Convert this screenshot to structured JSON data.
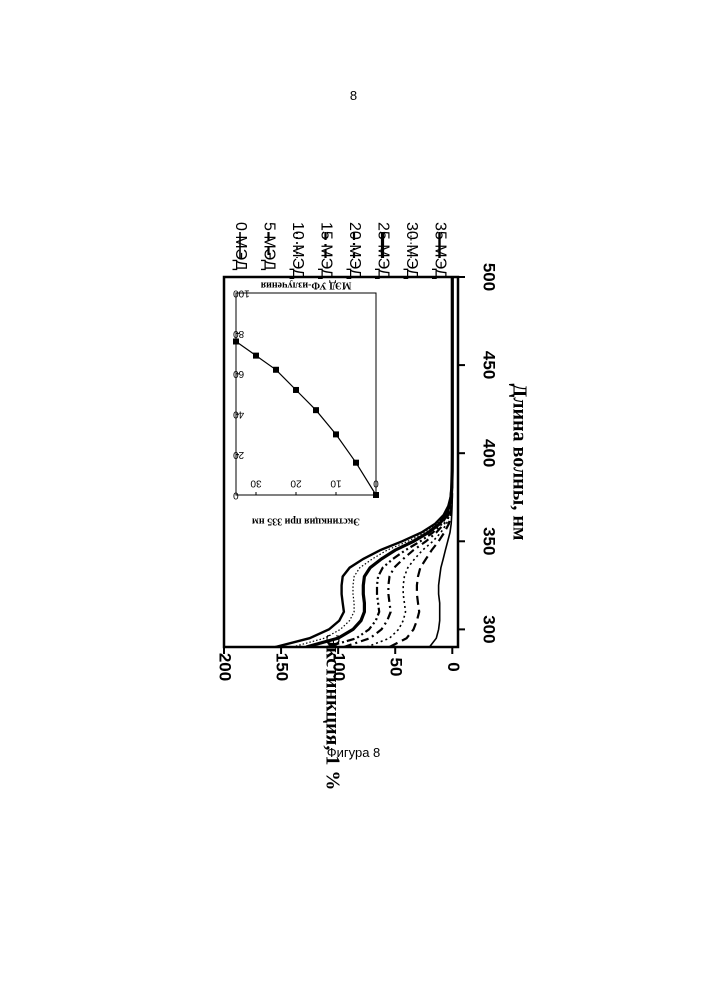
{
  "page": {
    "number": "8",
    "caption": "Фигура 8"
  },
  "chart_data": [
    {
      "type": "line",
      "orientation": "rotated 90° clockwise",
      "xlabel": "Длина волны, нм",
      "ylabel": "Экстинкция, 1 %",
      "xlim": [
        290,
        500
      ],
      "ylim": [
        -5,
        200
      ],
      "xticks": [
        300,
        350,
        400,
        450,
        500
      ],
      "yticks": [
        0,
        50,
        100,
        150,
        200
      ],
      "x": [
        290,
        295,
        300,
        305,
        310,
        315,
        320,
        325,
        330,
        335,
        340,
        345,
        350,
        355,
        360,
        365,
        370,
        375,
        380,
        390,
        400,
        420,
        450,
        500
      ],
      "series": [
        {
          "name": "0 МЭД",
          "style": "solid-thin",
          "values": [
            20,
            14,
            12,
            11,
            11,
            11,
            12,
            12,
            11,
            10,
            8,
            6,
            4,
            2,
            1,
            0.5,
            0.2,
            0,
            0,
            0,
            0,
            0,
            0,
            0
          ]
        },
        {
          "name": "5 МЭД",
          "style": "dashed",
          "values": [
            55,
            40,
            34,
            31,
            29,
            30,
            31,
            31,
            30,
            28,
            23,
            18,
            12,
            7,
            3,
            1.5,
            0.7,
            0.3,
            0.1,
            0,
            0,
            0,
            0,
            0
          ]
        },
        {
          "name": "10 МЭД",
          "style": "dotted",
          "values": [
            75,
            55,
            47,
            43,
            41,
            42,
            43,
            43,
            42,
            39,
            33,
            26,
            17,
            10,
            5,
            2.5,
            1.2,
            0.5,
            0.2,
            0,
            0,
            0,
            0,
            0
          ]
        },
        {
          "name": "15 МЭД",
          "style": "dash-dot",
          "values": [
            95,
            72,
            62,
            57,
            54,
            55,
            56,
            56,
            55,
            51,
            43,
            34,
            23,
            14,
            7,
            3.5,
            1.6,
            0.7,
            0.3,
            0.1,
            0,
            0,
            0,
            0
          ]
        },
        {
          "name": "20 МЭД",
          "style": "dash-dot-dot",
          "values": [
            110,
            84,
            73,
            67,
            64,
            65,
            66,
            66,
            65,
            61,
            52,
            41,
            28,
            17,
            9,
            4.5,
            2,
            0.9,
            0.4,
            0.1,
            0,
            0,
            0,
            0
          ]
        },
        {
          "name": "25 МЭД",
          "style": "solid-bold",
          "values": [
            128,
            100,
            87,
            80,
            77,
            77,
            78,
            78,
            77,
            72,
            62,
            50,
            34,
            21,
            11,
            5.5,
            2.5,
            1.1,
            0.5,
            0.1,
            0,
            0,
            0,
            0
          ]
        },
        {
          "name": "30 МЭД",
          "style": "dotted-fine",
          "values": [
            140,
            112,
            98,
            90,
            86,
            86,
            87,
            87,
            86,
            81,
            70,
            57,
            39,
            24,
            13,
            6.5,
            3,
            1.3,
            0.6,
            0.1,
            0,
            0,
            0,
            0
          ]
        },
        {
          "name": "35 МЭД",
          "style": "solid",
          "values": [
            155,
            125,
            108,
            99,
            95,
            96,
            97,
            97,
            96,
            90,
            78,
            63,
            44,
            27,
            15,
            7.5,
            3.5,
            1.5,
            0.7,
            0.2,
            0,
            0,
            0,
            0
          ]
        }
      ],
      "legend_position": "right"
    },
    {
      "type": "line",
      "role": "inset",
      "orientation": "rotated 180°",
      "xlabel": "МЭД УФ-излучения",
      "ylabel": "Экстинкция при 335 нм",
      "xlim": [
        0,
        35
      ],
      "ylim": [
        0,
        100
      ],
      "xticks": [
        0,
        10,
        20,
        30
      ],
      "yticks": [
        0,
        20,
        40,
        60,
        80,
        100
      ],
      "x": [
        0,
        5,
        10,
        15,
        20,
        25,
        30,
        35
      ],
      "y": [
        0,
        16,
        30,
        42,
        52,
        62,
        69,
        76
      ],
      "markers": "filled-square"
    }
  ]
}
